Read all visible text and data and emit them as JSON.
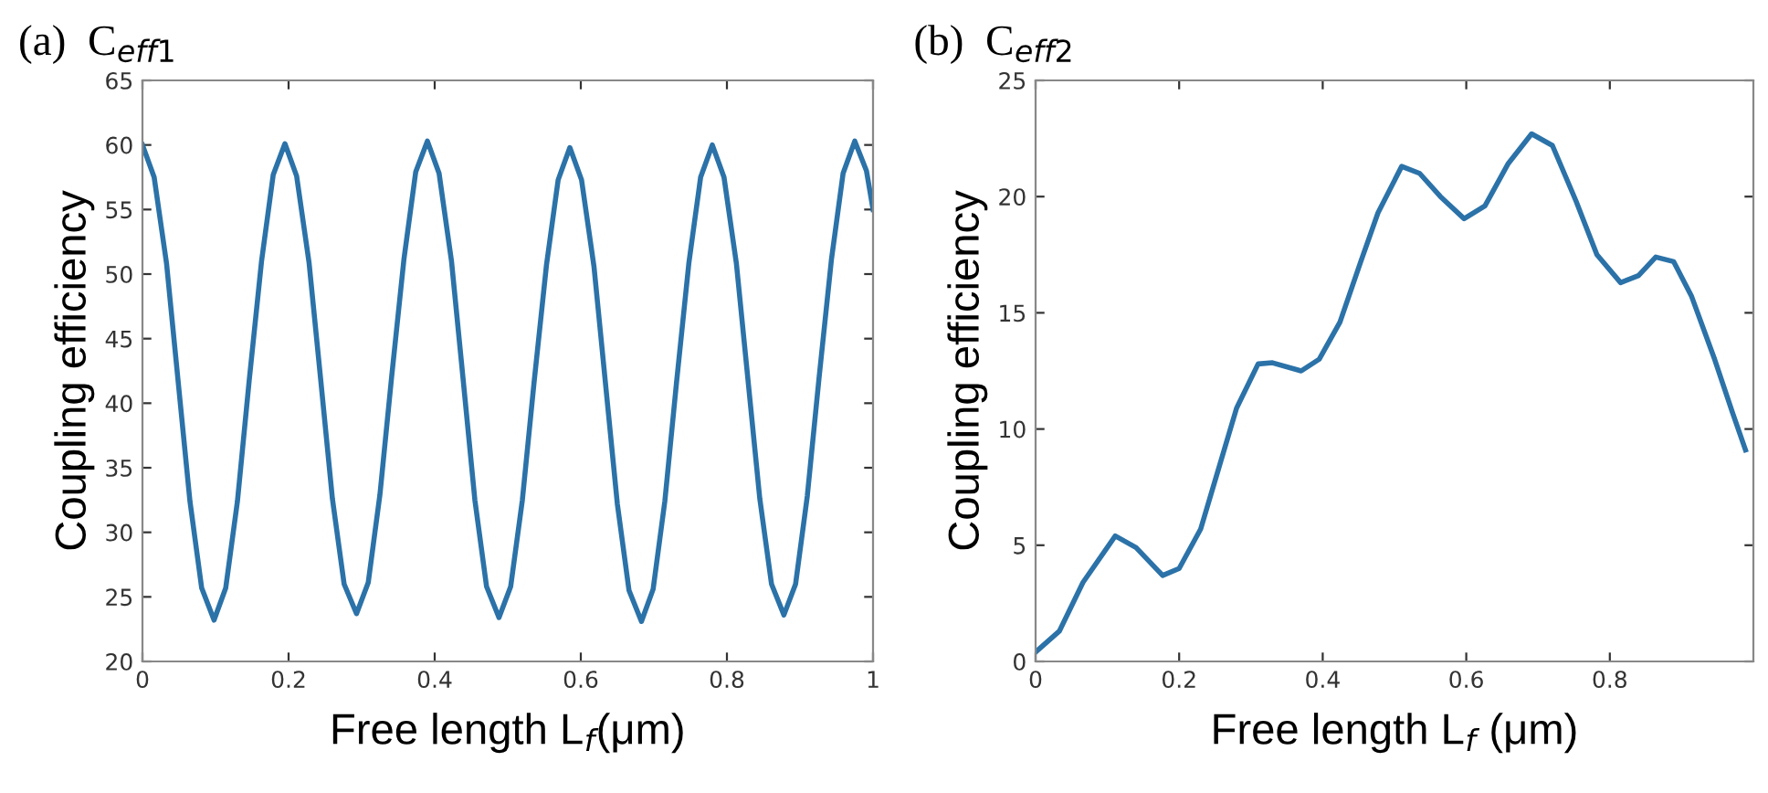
{
  "chart_data": [
    {
      "type": "line",
      "title": "(a)  C$_{eff1}$",
      "xlabel": "Free length L$_{f}$(μm)",
      "ylabel": "Coupling efficiency",
      "xlim": [
        0,
        1
      ],
      "ylim": [
        20,
        65
      ],
      "xticks": [
        0,
        0.2,
        0.4,
        0.6,
        0.8,
        1
      ],
      "yticks": [
        20,
        25,
        30,
        35,
        40,
        45,
        50,
        55,
        60,
        65
      ],
      "grid": false,
      "series": [
        {
          "color": "#2b72a8",
          "x": [
            0,
            0.016,
            0.033,
            0.049,
            0.065,
            0.081,
            0.098,
            0.114,
            0.13,
            0.146,
            0.163,
            0.179,
            0.195,
            0.211,
            0.228,
            0.244,
            0.26,
            0.276,
            0.293,
            0.309,
            0.325,
            0.341,
            0.358,
            0.374,
            0.39,
            0.406,
            0.423,
            0.439,
            0.455,
            0.471,
            0.488,
            0.504,
            0.52,
            0.536,
            0.553,
            0.569,
            0.585,
            0.601,
            0.618,
            0.634,
            0.65,
            0.666,
            0.683,
            0.699,
            0.715,
            0.731,
            0.748,
            0.764,
            0.78,
            0.796,
            0.813,
            0.829,
            0.845,
            0.861,
            0.878,
            0.894,
            0.91,
            0.926,
            0.943,
            0.959,
            0.975,
            0.991,
            1.0
          ],
          "values": [
            60.0,
            57.5,
            50.8,
            41.6,
            32.4,
            25.7,
            23.2,
            25.7,
            32.4,
            41.7,
            51.0,
            57.7,
            60.1,
            57.6,
            50.9,
            41.8,
            32.6,
            26.0,
            23.7,
            26.1,
            32.9,
            42.0,
            51.2,
            57.9,
            60.3,
            57.8,
            51.0,
            41.8,
            32.5,
            25.8,
            23.4,
            25.8,
            32.5,
            41.6,
            50.7,
            57.3,
            59.8,
            57.3,
            50.6,
            41.4,
            32.2,
            25.5,
            23.1,
            25.6,
            32.4,
            41.6,
            50.9,
            57.5,
            60.0,
            57.5,
            50.8,
            41.7,
            32.6,
            26.0,
            23.6,
            26.0,
            32.8,
            41.9,
            51.1,
            57.8,
            60.3,
            58.0,
            55.0
          ]
        }
      ]
    },
    {
      "type": "line",
      "title": "(b)  C$_{eff2}$",
      "xlabel": "Free length L$_{f}$ (μm)",
      "ylabel": "Coupling efficiency",
      "xlim": [
        0,
        1
      ],
      "ylim": [
        0,
        25
      ],
      "xticks": [
        0,
        0.2,
        0.4,
        0.6,
        0.8
      ],
      "yticks": [
        0,
        5,
        10,
        15,
        20,
        25
      ],
      "grid": false,
      "series": [
        {
          "color": "#2b72a8",
          "x": [
            0,
            0.033,
            0.066,
            0.111,
            0.14,
            0.177,
            0.2,
            0.23,
            0.255,
            0.28,
            0.31,
            0.33,
            0.37,
            0.395,
            0.424,
            0.453,
            0.477,
            0.51,
            0.535,
            0.564,
            0.597,
            0.626,
            0.658,
            0.691,
            0.72,
            0.753,
            0.782,
            0.815,
            0.84,
            0.864,
            0.889,
            0.914,
            0.946,
            0.971,
            0.989
          ],
          "values": [
            0.4,
            1.3,
            3.4,
            5.4,
            4.9,
            3.7,
            4.0,
            5.7,
            8.3,
            10.9,
            12.8,
            12.85,
            12.5,
            13.0,
            14.6,
            17.2,
            19.3,
            21.3,
            21.0,
            20.0,
            19.05,
            19.6,
            21.4,
            22.7,
            22.2,
            19.8,
            17.5,
            16.3,
            16.6,
            17.4,
            17.2,
            15.7,
            13.0,
            10.7,
            9.1
          ]
        }
      ]
    }
  ]
}
